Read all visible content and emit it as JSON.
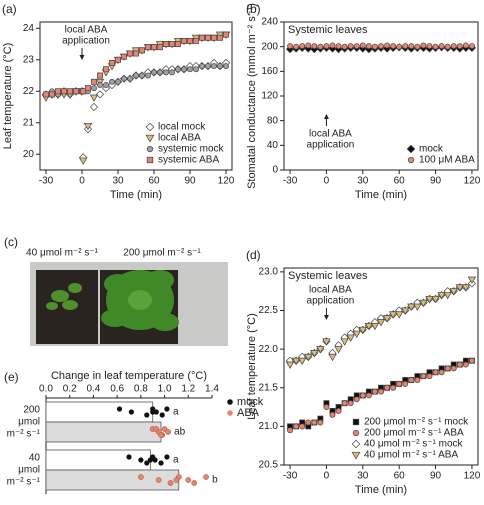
{
  "chart_data": [
    {
      "type": "scatter",
      "panel": "(a)",
      "x_label": "Time (min)",
      "y_label": "Leaf temperature (°C)",
      "annotation": [
        "local ABA",
        "application"
      ],
      "annotation_x": 0,
      "annotation_side": "above",
      "legend": "lower right",
      "x": [
        -30,
        -25,
        -20,
        -15,
        -10,
        -5,
        0,
        1,
        5,
        10,
        15,
        20,
        25,
        30,
        35,
        40,
        45,
        50,
        55,
        60,
        65,
        70,
        75,
        80,
        85,
        90,
        95,
        100,
        105,
        110,
        115,
        120
      ],
      "xlim": [
        -35,
        125
      ],
      "xticks": [
        -30,
        0,
        30,
        60,
        90,
        120
      ],
      "ylim": [
        19.5,
        24.2
      ],
      "yticks": [
        20,
        21,
        22,
        23,
        24
      ],
      "series": [
        {
          "name": "local mock",
          "marker": "diamond",
          "color": "#ffffff",
          "values": [
            21.9,
            21.9,
            21.9,
            22.0,
            21.9,
            22.0,
            22.0,
            19.9,
            20.8,
            21.5,
            21.9,
            22.1,
            22.2,
            22.3,
            22.4,
            22.4,
            22.5,
            22.5,
            22.6,
            22.6,
            22.6,
            22.7,
            22.7,
            22.7,
            22.7,
            22.8,
            22.8,
            22.8,
            22.8,
            22.9,
            22.8,
            22.9
          ]
        },
        {
          "name": "local ABA",
          "marker": "triangle",
          "color": "#dcbb7e",
          "values": [
            21.8,
            21.9,
            21.9,
            21.9,
            21.9,
            22.0,
            22.0,
            19.8,
            20.9,
            21.8,
            22.3,
            22.6,
            22.8,
            23.0,
            23.1,
            23.2,
            23.3,
            23.3,
            23.4,
            23.4,
            23.5,
            23.5,
            23.5,
            23.6,
            23.6,
            23.6,
            23.7,
            23.7,
            23.7,
            23.7,
            23.8,
            23.8
          ]
        },
        {
          "name": "systemic mock",
          "marker": "circle",
          "color": "#a0a0a0",
          "values": [
            21.9,
            22.0,
            21.9,
            22.0,
            22.0,
            22.0,
            22.0,
            22.0,
            22.0,
            22.1,
            22.2,
            22.2,
            22.3,
            22.3,
            22.4,
            22.4,
            22.5,
            22.5,
            22.5,
            22.6,
            22.6,
            22.6,
            22.6,
            22.7,
            22.7,
            22.7,
            22.7,
            22.8,
            22.8,
            22.8,
            22.8,
            22.8
          ]
        },
        {
          "name": "systemic ABA",
          "marker": "square",
          "color": "#e8836d",
          "values": [
            21.9,
            21.9,
            22.0,
            22.0,
            22.0,
            22.0,
            22.0,
            22.0,
            22.1,
            22.3,
            22.5,
            22.7,
            22.9,
            23.0,
            23.1,
            23.2,
            23.2,
            23.3,
            23.4,
            23.4,
            23.4,
            23.5,
            23.5,
            23.5,
            23.6,
            23.6,
            23.6,
            23.7,
            23.7,
            23.7,
            23.7,
            23.8
          ]
        }
      ]
    },
    {
      "type": "scatter",
      "panel": "(b)",
      "subtitle": "Systemic leaves",
      "x_label": "Time (min)",
      "y_label": "Stomatal conductance (mmol m⁻² s⁻¹)",
      "annotation": [
        "local ABA",
        "application"
      ],
      "annotation_x": 0,
      "annotation_side": "below",
      "legend": "lower right",
      "x": [
        -30,
        -25,
        -20,
        -15,
        -10,
        -5,
        0,
        5,
        10,
        15,
        20,
        25,
        30,
        35,
        40,
        45,
        50,
        55,
        60,
        65,
        70,
        75,
        80,
        85,
        90,
        95,
        100,
        105,
        110,
        115,
        120
      ],
      "xlim": [
        -35,
        125
      ],
      "xticks": [
        -30,
        0,
        30,
        60,
        90,
        120
      ],
      "ylim": [
        0,
        240
      ],
      "yticks": [
        0,
        40,
        80,
        120,
        160,
        200,
        240
      ],
      "series": [
        {
          "name": "mock",
          "marker": "diamond",
          "color": "#111111",
          "values": [
            196,
            197,
            198,
            197,
            196,
            197,
            198,
            197,
            196,
            197,
            198,
            198,
            197,
            196,
            197,
            198,
            197,
            198,
            199,
            198,
            197,
            198,
            198,
            197,
            198,
            199,
            198,
            198,
            197,
            198,
            198
          ]
        },
        {
          "name": "100 μM ABA",
          "marker": "circle",
          "color": "#e8836d",
          "values": [
            201,
            200,
            201,
            202,
            201,
            200,
            201,
            202,
            201,
            200,
            201,
            201,
            202,
            201,
            200,
            201,
            202,
            201,
            200,
            201,
            201,
            200,
            202,
            201,
            200,
            201,
            200,
            201,
            201,
            202,
            201
          ]
        }
      ]
    },
    {
      "type": "scatter",
      "panel": "(d)",
      "subtitle": "Systemic leaves",
      "x_label": "Time (min)",
      "y_label": "Leaf temperature (°C)",
      "annotation": [
        "local ABA",
        "application"
      ],
      "annotation_x": 0,
      "annotation_side": "above",
      "legend": "lower right",
      "x": [
        -30,
        -25,
        -20,
        -15,
        -10,
        -5,
        0,
        5,
        10,
        15,
        20,
        25,
        30,
        35,
        40,
        45,
        50,
        55,
        60,
        65,
        70,
        75,
        80,
        85,
        90,
        95,
        100,
        105,
        110,
        115,
        120
      ],
      "xlim": [
        -35,
        125
      ],
      "xticks": [
        -30,
        0,
        30,
        60,
        90,
        120
      ],
      "ylim": [
        20.5,
        23.05
      ],
      "yticks": [
        20.5,
        {
          "value": 21,
          "label": "21.0"
        },
        21.5,
        {
          "value": 22,
          "label": "22.0"
        },
        22.5,
        {
          "value": 23,
          "label": "23.0"
        }
      ],
      "series": [
        {
          "name": "200 μmol m⁻² s⁻¹ mock",
          "marker": "square",
          "color": "#111111",
          "values": [
            21.0,
            21.0,
            21.05,
            21.0,
            21.05,
            21.1,
            21.3,
            21.2,
            21.25,
            21.3,
            21.35,
            21.4,
            21.4,
            21.45,
            21.45,
            21.5,
            21.5,
            21.55,
            21.55,
            21.6,
            21.6,
            21.65,
            21.65,
            21.7,
            21.7,
            21.75,
            21.75,
            21.8,
            21.8,
            21.85,
            21.85
          ]
        },
        {
          "name": "200 μmol m⁻² s⁻¹ ABA",
          "marker": "circle",
          "color": "#e8836d",
          "values": [
            20.95,
            21.0,
            21.0,
            21.05,
            21.05,
            21.05,
            21.25,
            21.15,
            21.2,
            21.3,
            21.3,
            21.35,
            21.4,
            21.4,
            21.45,
            21.45,
            21.5,
            21.5,
            21.55,
            21.55,
            21.6,
            21.6,
            21.65,
            21.65,
            21.7,
            21.7,
            21.75,
            21.75,
            21.8,
            21.8,
            21.85
          ]
        },
        {
          "name": "40 μmol m⁻² s⁻¹ mock",
          "marker": "diamond",
          "color": "#ffffff",
          "values": [
            21.85,
            21.85,
            21.9,
            21.9,
            21.95,
            22.0,
            22.1,
            21.95,
            22.05,
            22.15,
            22.2,
            22.25,
            22.25,
            22.3,
            22.35,
            22.4,
            22.4,
            22.45,
            22.5,
            22.5,
            22.55,
            22.6,
            22.6,
            22.65,
            22.65,
            22.7,
            22.75,
            22.75,
            22.8,
            22.8,
            22.85
          ]
        },
        {
          "name": "40 μmol m⁻² s⁻¹ ABA",
          "marker": "triangle",
          "color": "#dcbb7e",
          "values": [
            21.8,
            21.85,
            21.85,
            21.9,
            21.95,
            22.0,
            22.1,
            21.9,
            22.0,
            22.1,
            22.15,
            22.2,
            22.25,
            22.3,
            22.3,
            22.35,
            22.4,
            22.45,
            22.45,
            22.5,
            22.55,
            22.55,
            22.6,
            22.65,
            22.65,
            22.7,
            22.7,
            22.75,
            22.8,
            22.8,
            22.9
          ]
        }
      ]
    },
    {
      "type": "hbar",
      "panel": "(e)",
      "x_label": "Change in leaf temperature (°C)",
      "legend": "upper right",
      "categories": [
        [
          "200",
          "μmol",
          "m⁻² s⁻¹"
        ],
        [
          "40",
          "μmol",
          "m⁻² s⁻¹"
        ]
      ],
      "xlim": [
        0,
        1.4
      ],
      "xticks": [
        {
          "value": 0,
          "label": "0.0"
        },
        0.2,
        0.4,
        0.6,
        0.8,
        {
          "value": 1,
          "label": "1.0"
        },
        1.2,
        1.4
      ],
      "series": [
        {
          "name": "mock",
          "color": "#ffffff",
          "point_color": "#111111",
          "values": [
            0.9,
            0.88
          ],
          "letters": [
            "a",
            "a"
          ],
          "points": [
            [
              0.62,
              0.72,
              0.85,
              0.9,
              0.93,
              0.98,
              1.02,
              0.9
            ],
            [
              0.7,
              0.8,
              0.85,
              0.9,
              0.92,
              0.97,
              1.02,
              0.88
            ]
          ]
        },
        {
          "name": "ABA",
          "color": "#dcdcdc",
          "point_color": "#e8836d",
          "values": [
            0.97,
            1.12
          ],
          "letters": [
            "ab",
            "b"
          ],
          "points": [
            [
              0.9,
              0.95,
              0.98,
              1.0,
              1.03,
              0.97,
              0.93
            ],
            [
              0.8,
              0.95,
              1.05,
              1.12,
              1.2,
              1.25,
              1.35,
              1.1
            ]
          ]
        }
      ]
    }
  ],
  "photo": {
    "panel": "(c)",
    "labels": [
      "40 μmol m⁻² s⁻¹",
      "200 μmol m⁻² s⁻¹"
    ]
  }
}
